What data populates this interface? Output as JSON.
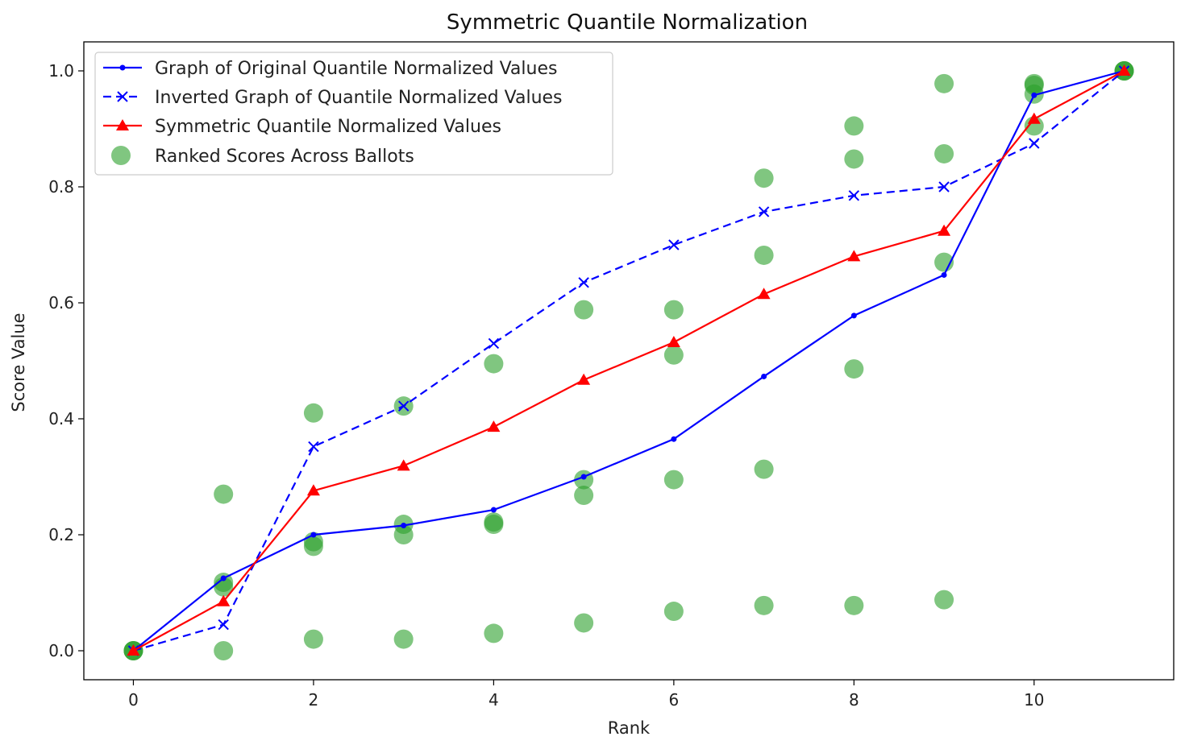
{
  "chart_data": {
    "type": "line",
    "title": "Symmetric Quantile Normalization",
    "xlabel": "Rank",
    "ylabel": "Score Value",
    "xlim": [
      -0.55,
      11.55
    ],
    "ylim": [
      -0.05,
      1.05
    ],
    "xticks": [
      0,
      2,
      4,
      6,
      8,
      10
    ],
    "yticks": [
      0.0,
      0.2,
      0.4,
      0.6,
      0.8,
      1.0
    ],
    "xtick_labels": [
      "0",
      "2",
      "4",
      "6",
      "8",
      "10"
    ],
    "ytick_labels": [
      "0.0",
      "0.2",
      "0.4",
      "0.6",
      "0.8",
      "1.0"
    ],
    "grid": false,
    "legend_position": "upper-left",
    "series": [
      {
        "name": "Graph of Original Quantile Normalized Values",
        "color": "#0000ff",
        "style": "solid",
        "marker": "dot",
        "x": [
          0,
          1,
          2,
          3,
          4,
          5,
          6,
          7,
          8,
          9,
          10,
          11
        ],
        "y": [
          0.0,
          0.125,
          0.2,
          0.216,
          0.243,
          0.3,
          0.365,
          0.473,
          0.578,
          0.648,
          0.958,
          1.0
        ]
      },
      {
        "name": "Inverted Graph of Quantile Normalized Values",
        "color": "#0000ff",
        "style": "dashed",
        "marker": "x",
        "x": [
          0,
          1,
          2,
          3,
          4,
          5,
          6,
          7,
          8,
          9,
          10,
          11
        ],
        "y": [
          0.0,
          0.045,
          0.352,
          0.422,
          0.53,
          0.635,
          0.7,
          0.757,
          0.785,
          0.8,
          0.875,
          1.0
        ]
      },
      {
        "name": "Symmetric Quantile Normalized Values",
        "color": "#ff0000",
        "style": "solid",
        "marker": "triangle",
        "x": [
          0,
          1,
          2,
          3,
          4,
          5,
          6,
          7,
          8,
          9,
          10,
          11
        ],
        "y": [
          0.0,
          0.085,
          0.276,
          0.319,
          0.386,
          0.467,
          0.532,
          0.615,
          0.68,
          0.724,
          0.917,
          1.0
        ]
      }
    ],
    "scatter": {
      "name": "Ranked Scores Across Ballots",
      "color": "#2ca02c",
      "points": [
        [
          0,
          0.0
        ],
        [
          0,
          0.0
        ],
        [
          0,
          0.0
        ],
        [
          1,
          0.0
        ],
        [
          1,
          0.11
        ],
        [
          1,
          0.118
        ],
        [
          1,
          0.27
        ],
        [
          2,
          0.02
        ],
        [
          2,
          0.18
        ],
        [
          2,
          0.188
        ],
        [
          2,
          0.41
        ],
        [
          3,
          0.02
        ],
        [
          3,
          0.2
        ],
        [
          3,
          0.218
        ],
        [
          3,
          0.422
        ],
        [
          4,
          0.03
        ],
        [
          4,
          0.218
        ],
        [
          4,
          0.222
        ],
        [
          4,
          0.495
        ],
        [
          5,
          0.048
        ],
        [
          5,
          0.268
        ],
        [
          5,
          0.295
        ],
        [
          5,
          0.588
        ],
        [
          6,
          0.068
        ],
        [
          6,
          0.295
        ],
        [
          6,
          0.51
        ],
        [
          6,
          0.588
        ],
        [
          7,
          0.078
        ],
        [
          7,
          0.313
        ],
        [
          7,
          0.682
        ],
        [
          7,
          0.815
        ],
        [
          8,
          0.078
        ],
        [
          8,
          0.486
        ],
        [
          8,
          0.848
        ],
        [
          8,
          0.905
        ],
        [
          9,
          0.088
        ],
        [
          9,
          0.67
        ],
        [
          9,
          0.857
        ],
        [
          9,
          0.978
        ],
        [
          10,
          0.905
        ],
        [
          10,
          0.96
        ],
        [
          10,
          0.975
        ],
        [
          10,
          0.978
        ],
        [
          11,
          1.0
        ],
        [
          11,
          1.0
        ],
        [
          11,
          1.0
        ]
      ]
    }
  }
}
